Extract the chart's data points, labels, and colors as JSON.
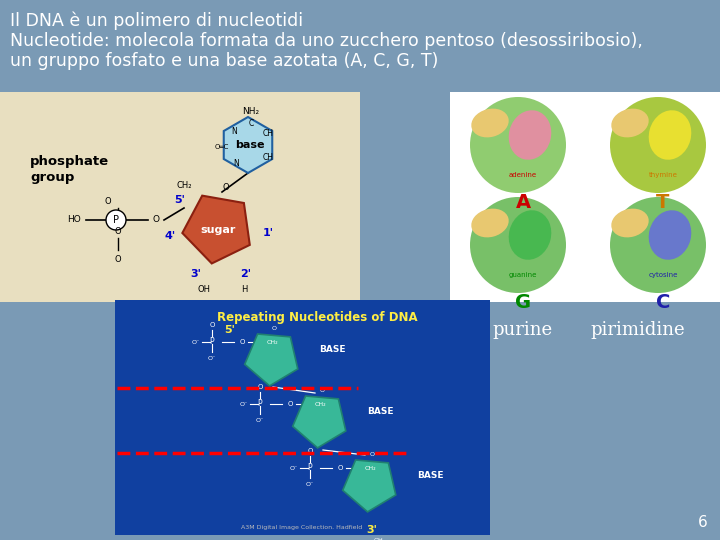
{
  "bg_color": "#7a9ab5",
  "title_line1": "Il DNA è un polimero di nucleotidi",
  "title_line2": "Nucleotide: molecola formata da uno zucchero pentoso (desossiribosio),",
  "title_line3": "un gruppo fosfato e una base azotata (A, C, G, T)",
  "title_color": "#ffffff",
  "title_fontsize": 12.5,
  "purine_label": "purine",
  "pirimidine_label": "pirimidine",
  "label_color": "#ffffff",
  "label_fontsize": 13,
  "page_number": "6",
  "page_number_color": "#ffffff",
  "page_number_fontsize": 11,
  "img1_bg": "#e8dfc0",
  "img2_bg": "#ffffff",
  "img3_bg": "#1040a0"
}
